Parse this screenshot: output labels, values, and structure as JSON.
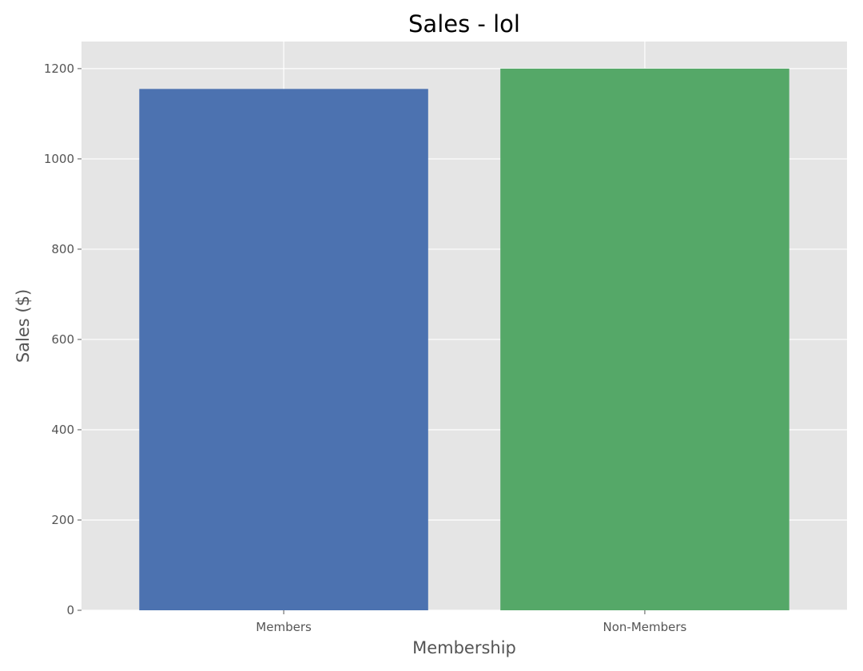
{
  "chart_data": {
    "type": "bar",
    "title": "Sales - lol",
    "xlabel": "Membership",
    "ylabel": "Sales ($)",
    "categories": [
      "Members",
      "Non-Members"
    ],
    "values": [
      1155,
      1200
    ],
    "colors": [
      "#4c72b0",
      "#55a868"
    ],
    "ylim": [
      0,
      1260
    ],
    "yticks": [
      0,
      200,
      400,
      600,
      800,
      1000,
      1200
    ],
    "grid": true,
    "legend": "none",
    "background_color": "#e5e5e5",
    "grid_color": "#ffffff"
  }
}
